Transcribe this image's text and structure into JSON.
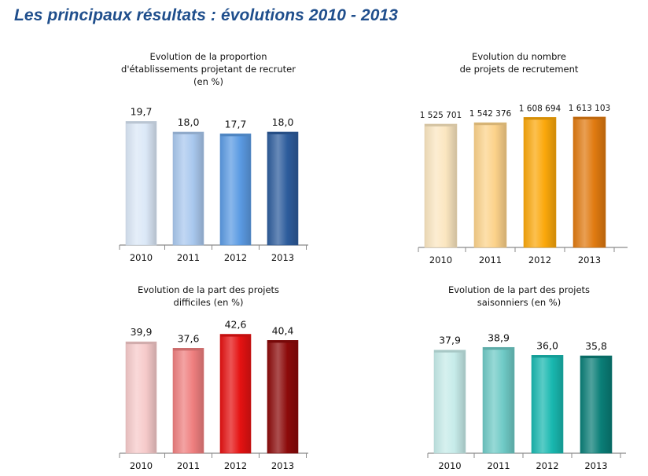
{
  "page": {
    "title": "Les principaux résultats : évolutions 2010 - 2013"
  },
  "chart_data": [
    {
      "type": "bar",
      "title_lines": [
        "Evolution de la proportion",
        "d'établissements projetant de recruter",
        "(en %)"
      ],
      "categories": [
        "2010",
        "2011",
        "2012",
        "2013"
      ],
      "values": [
        19.7,
        18.0,
        17.7,
        18.0
      ],
      "value_labels": [
        "19,7",
        "18,0",
        "17,7",
        "18,0"
      ],
      "colors": [
        "#dbe8f7",
        "#a9c8ee",
        "#5b9be3",
        "#2d5c9c"
      ],
      "ylim": [
        0,
        21.5
      ]
    },
    {
      "type": "bar",
      "title_lines": [
        "Evolution du nombre",
        "de projets de recrutement"
      ],
      "categories": [
        "2010",
        "2011",
        "2012",
        "2013"
      ],
      "values": [
        1525701,
        1542376,
        1608694,
        1613103
      ],
      "value_labels": [
        "1 525 701",
        "1 542 376",
        "1 608 694",
        "1 613 103"
      ],
      "colors": [
        "#fbe6c0",
        "#fcd28a",
        "#fba80b",
        "#e07a10"
      ],
      "ylim": [
        0,
        1700000
      ]
    },
    {
      "type": "bar",
      "title_lines": [
        "Evolution de la part des projets",
        "difficiles (en %)"
      ],
      "categories": [
        "2010",
        "2011",
        "2012",
        "2013"
      ],
      "values": [
        39.9,
        37.6,
        42.6,
        40.4
      ],
      "value_labels": [
        "39,9",
        "37,6",
        "42,6",
        "40,4"
      ],
      "colors": [
        "#f6caca",
        "#ef7f7f",
        "#e51212",
        "#8c0a0a"
      ],
      "ylim": [
        0,
        45
      ]
    },
    {
      "type": "bar",
      "title_lines": [
        "Evolution de la part des projets",
        "saisonniers (en %)"
      ],
      "categories": [
        "2010",
        "2011",
        "2012",
        "2013"
      ],
      "values": [
        37.9,
        38.9,
        36.0,
        35.8
      ],
      "value_labels": [
        "37,9",
        "38,9",
        "36,0",
        "35,8"
      ],
      "colors": [
        "#c6ebe9",
        "#6fcac6",
        "#19b8b0",
        "#0a7e77"
      ],
      "ylim": [
        0,
        41
      ]
    }
  ]
}
